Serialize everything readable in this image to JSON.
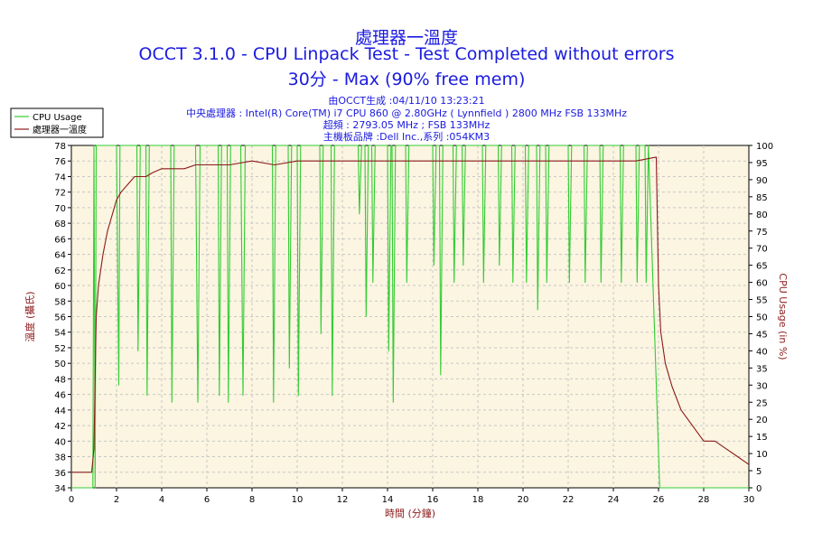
{
  "chart_data": {
    "type": "line",
    "title": "處理器一溫度",
    "subtitle": "OCCT 3.1.0 - CPU Linpack Test - Test Completed without errors",
    "subtitle2": "30分 - Max (90% free mem)",
    "info": [
      "由OCCT生成 :04/11/10 13:23:21",
      "中央處理器 : Intel(R) Core(TM) i7 CPU 860 @ 2.80GHz ( Lynnfield ) 2800 MHz FSB 133MHz",
      "超頻 : 2793.05 MHz ; FSB 133MHz",
      "主機板品牌 :Dell Inc.,系列 :054KM3"
    ],
    "xlabel": "時間 (分鐘)",
    "ylabel_left": "溫度 (攝氏)",
    "ylabel_right": "CPU Usage (in %)",
    "xlim": [
      0,
      30
    ],
    "ylim_left": [
      34,
      78
    ],
    "ylim_right": [
      0,
      100
    ],
    "x_ticks": [
      0,
      2,
      4,
      6,
      8,
      10,
      12,
      14,
      16,
      18,
      20,
      22,
      24,
      26,
      28,
      30
    ],
    "y_left_ticks": [
      34,
      36,
      38,
      40,
      42,
      44,
      46,
      48,
      50,
      52,
      54,
      56,
      58,
      60,
      62,
      64,
      66,
      68,
      70,
      72,
      74,
      76,
      78
    ],
    "y_right_ticks": [
      0,
      5,
      10,
      15,
      20,
      25,
      30,
      35,
      40,
      45,
      50,
      55,
      60,
      65,
      70,
      75,
      80,
      85,
      90,
      95,
      100
    ],
    "grid": true,
    "legend_position": "top-left",
    "series": [
      {
        "name": "CPU Usage",
        "axis": "right",
        "color": "#33cc33",
        "x": [
          0,
          0.95,
          1.0,
          1.05,
          1.1,
          1.2,
          2.0,
          2.1,
          2.15,
          2.3,
          2.9,
          2.95,
          3.05,
          3.3,
          3.35,
          3.45,
          4.4,
          4.45,
          4.55,
          5.5,
          5.6,
          5.7,
          6.5,
          6.55,
          6.65,
          6.9,
          6.95,
          7.05,
          7.5,
          7.6,
          7.7,
          8.9,
          8.95,
          9.05,
          9.6,
          9.65,
          9.75,
          10.0,
          10.05,
          10.15,
          11.0,
          11.05,
          11.15,
          11.5,
          11.55,
          11.65,
          12.7,
          12.75,
          12.85,
          13.0,
          13.05,
          13.15,
          13.3,
          13.35,
          13.45,
          14.0,
          14.05,
          14.15,
          14.2,
          14.25,
          14.35,
          14.8,
          14.85,
          14.95,
          16.0,
          16.05,
          16.15,
          16.3,
          16.35,
          16.45,
          16.9,
          16.95,
          17.05,
          17.3,
          17.35,
          17.45,
          18.2,
          18.25,
          18.35,
          18.9,
          18.95,
          19.05,
          19.5,
          19.55,
          19.65,
          20.1,
          20.15,
          20.25,
          20.6,
          20.65,
          20.75,
          21.0,
          21.05,
          21.15,
          22.0,
          22.05,
          22.15,
          22.7,
          22.75,
          22.85,
          23.4,
          23.45,
          23.55,
          24.3,
          24.35,
          24.45,
          25.0,
          25.05,
          25.15,
          25.4,
          25.45,
          25.55,
          26.05,
          26.1,
          26.15,
          30
        ],
        "y": [
          0,
          0,
          100,
          0,
          100,
          100,
          100,
          30,
          100,
          100,
          100,
          40,
          100,
          100,
          27,
          100,
          100,
          25,
          100,
          100,
          25,
          100,
          100,
          27,
          100,
          100,
          25,
          100,
          100,
          27,
          100,
          100,
          25,
          100,
          100,
          35,
          100,
          100,
          27,
          100,
          100,
          45,
          100,
          100,
          27,
          100,
          100,
          80,
          100,
          100,
          50,
          100,
          100,
          60,
          100,
          100,
          40,
          100,
          100,
          25,
          100,
          100,
          60,
          100,
          100,
          65,
          100,
          100,
          33,
          100,
          100,
          60,
          100,
          100,
          65,
          100,
          100,
          60,
          100,
          100,
          65,
          100,
          100,
          60,
          100,
          100,
          60,
          100,
          100,
          52,
          100,
          100,
          60,
          100,
          100,
          60,
          100,
          100,
          60,
          100,
          100,
          60,
          100,
          100,
          60,
          100,
          100,
          60,
          100,
          100,
          60,
          100,
          0,
          0,
          0,
          0
        ]
      },
      {
        "name": "處理器一溫度",
        "axis": "left",
        "color": "#8b1a1a",
        "x": [
          0,
          0.3,
          0.6,
          0.9,
          1.0,
          1.1,
          1.2,
          1.4,
          1.6,
          1.8,
          2.0,
          2.2,
          2.5,
          2.8,
          3.0,
          3.3,
          3.6,
          4.0,
          4.5,
          5.0,
          5.5,
          6.0,
          7.0,
          8.0,
          9.0,
          10.0,
          11.0,
          12.0,
          13.0,
          14.0,
          15.0,
          16.0,
          17.0,
          18.0,
          19.0,
          20.0,
          21.0,
          22.0,
          23.0,
          24.0,
          25.0,
          25.9,
          26.0,
          26.1,
          26.3,
          26.6,
          27.0,
          27.5,
          28.0,
          28.5,
          29.0,
          29.5,
          30.0
        ],
        "y": [
          36,
          36,
          36,
          36,
          39,
          56,
          60,
          64,
          67,
          69,
          71,
          72,
          73,
          74,
          74,
          74,
          74.5,
          75,
          75,
          75,
          75.5,
          75.5,
          75.5,
          76,
          75.5,
          76,
          76,
          76,
          76,
          76,
          76,
          76,
          76,
          76,
          76,
          76,
          76,
          76,
          76,
          76,
          76,
          76.5,
          60,
          54,
          50,
          47,
          44,
          42,
          40,
          40,
          39,
          38,
          37
        ]
      }
    ]
  }
}
